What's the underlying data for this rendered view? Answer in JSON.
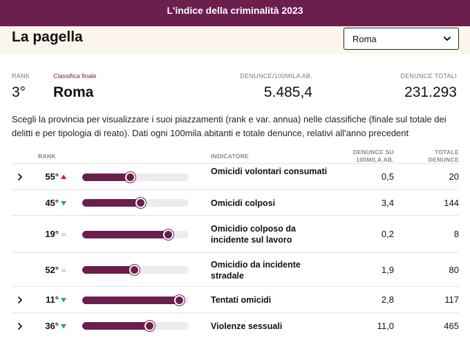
{
  "topbar": {
    "title": "L'indice della criminalità 2023"
  },
  "header": {
    "title": "La pagella",
    "province_select": {
      "selected": "Roma"
    }
  },
  "summary": {
    "rank_label": "RANK",
    "rank": "3°",
    "final_label": "Classifica finale",
    "province": "Roma",
    "per100k_label": "DENUNCE/100MILA AB.",
    "per100k": "5.485,4",
    "total_label": "DENUNCE TOTALI",
    "total": "231.293"
  },
  "description": "Scegli la provincia per visualizzare i suoi piazzamenti (rank e var. annua) nelle classifiche (finale sul totale dei delitti e per tipologia di reato). Dati ogni 100mila abitanti e totale denunce, relativi all'anno precedent",
  "table": {
    "headers": {
      "rank": "RANK",
      "indicator": "INDICATORE",
      "per100k_1": "DENUNCE SU",
      "per100k_2": "100MILA AB.",
      "total_1": "TOTALE",
      "total_2": "DENUNCE"
    },
    "rows": [
      {
        "rank": "55°",
        "trend": "up",
        "fill": 0.46,
        "indicator": "Omicidi volontari consumati",
        "per100k": "0,5",
        "total": "20",
        "expandable": true
      },
      {
        "rank": "45°",
        "trend": "down",
        "fill": 0.56,
        "indicator": "Omicidi colposi",
        "per100k": "3,4",
        "total": "144",
        "expandable": false
      },
      {
        "rank": "19°",
        "trend": "same",
        "fill": 0.82,
        "indicator": "Omicidio colposo da incidente sul lavoro",
        "per100k": "0,2",
        "total": "8",
        "expandable": false
      },
      {
        "rank": "52°",
        "trend": "same",
        "fill": 0.5,
        "indicator": "Omicidio da incidente stradale",
        "per100k": "1,9",
        "total": "80",
        "expandable": false
      },
      {
        "rank": "11°",
        "trend": "down",
        "fill": 0.92,
        "indicator": "Tentati omicidi",
        "per100k": "2,8",
        "total": "117",
        "expandable": true
      },
      {
        "rank": "36°",
        "trend": "down",
        "fill": 0.64,
        "indicator": "Violenze sessuali",
        "per100k": "11,0",
        "total": "465",
        "expandable": true
      }
    ]
  },
  "colors": {
    "accent": "#6b1f4e",
    "trend_up": "#d0202a",
    "trend_down": "#1fae5a",
    "trend_same": "#aaaaaa",
    "header_bg": "#fbf5ec"
  }
}
